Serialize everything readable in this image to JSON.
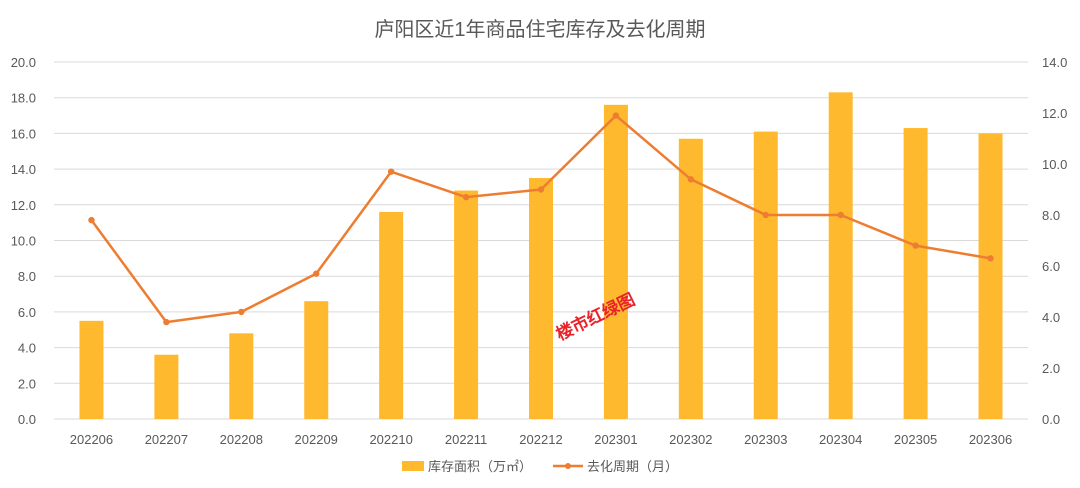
{
  "chart_data": {
    "type": "bar+line",
    "title": "庐阳区近1年商品住宅库存及去化周期",
    "categories": [
      "202206",
      "202207",
      "202208",
      "202209",
      "202210",
      "202211",
      "202212",
      "202301",
      "202302",
      "202303",
      "202304",
      "202305",
      "202306"
    ],
    "series": [
      {
        "name": "库存面积（万㎡）",
        "type": "bar",
        "axis": "left",
        "color": "#FFB92E",
        "values": [
          5.5,
          3.6,
          4.8,
          6.6,
          11.6,
          12.8,
          13.5,
          17.6,
          15.7,
          16.1,
          18.3,
          16.3,
          16.0
        ]
      },
      {
        "name": "去化周期（月）",
        "type": "line",
        "axis": "right",
        "color": "#ED7D31",
        "values": [
          7.8,
          3.8,
          4.2,
          5.7,
          9.7,
          8.7,
          9.0,
          11.9,
          9.4,
          8.0,
          8.0,
          6.8,
          6.3
        ]
      }
    ],
    "y_left": {
      "min": 0,
      "max": 20,
      "step": 2,
      "ticks": [
        "0.0",
        "2.0",
        "4.0",
        "6.0",
        "8.0",
        "10.0",
        "12.0",
        "14.0",
        "16.0",
        "18.0",
        "20.0"
      ]
    },
    "y_right": {
      "min": 0,
      "max": 14,
      "step": 2,
      "ticks": [
        "0.0",
        "2.0",
        "4.0",
        "6.0",
        "8.0",
        "10.0",
        "12.0",
        "14.0"
      ]
    },
    "grid": true,
    "legend_position": "bottom",
    "watermark": "楼市红绿图",
    "colors": {
      "grid": "#D9D9D9",
      "text": "#595959",
      "title": "#595959",
      "watermark": "#E8232A"
    }
  }
}
